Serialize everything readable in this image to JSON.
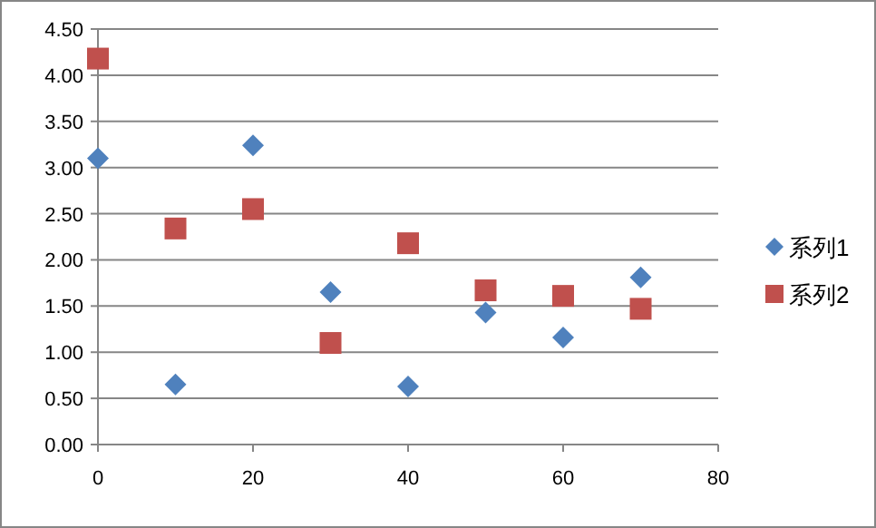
{
  "chart_data": {
    "type": "scatter",
    "xlim": [
      0,
      80
    ],
    "xticks": [
      0,
      20,
      40,
      60,
      80
    ],
    "ylim": [
      0,
      4.5
    ],
    "yticks": [
      {
        "value": 0,
        "label": "0.00"
      },
      {
        "value": 0.5,
        "label": "0.50"
      },
      {
        "value": 1,
        "label": "1.00"
      },
      {
        "value": 1.5,
        "label": "1.50"
      },
      {
        "value": 2,
        "label": "2.00"
      },
      {
        "value": 2.5,
        "label": "2.50"
      },
      {
        "value": 3,
        "label": "3.00"
      },
      {
        "value": 3.5,
        "label": "3.50"
      },
      {
        "value": 4,
        "label": "4.00"
      },
      {
        "value": 4.5,
        "label": "4.50"
      }
    ],
    "grid": "y",
    "legend": "right",
    "series": [
      {
        "name": "系列1",
        "color": "#4f81bd",
        "marker": "diamond",
        "x": [
          0,
          10,
          20,
          30,
          40,
          50,
          60,
          70
        ],
        "values": [
          3.1,
          0.65,
          3.24,
          1.65,
          0.63,
          1.43,
          1.16,
          1.81
        ]
      },
      {
        "name": "系列2",
        "color": "#c0504d",
        "marker": "square",
        "x": [
          0,
          10,
          20,
          30,
          40,
          50,
          60,
          70
        ],
        "values": [
          4.18,
          2.34,
          2.55,
          1.1,
          2.18,
          1.67,
          1.61,
          1.47
        ]
      }
    ]
  }
}
